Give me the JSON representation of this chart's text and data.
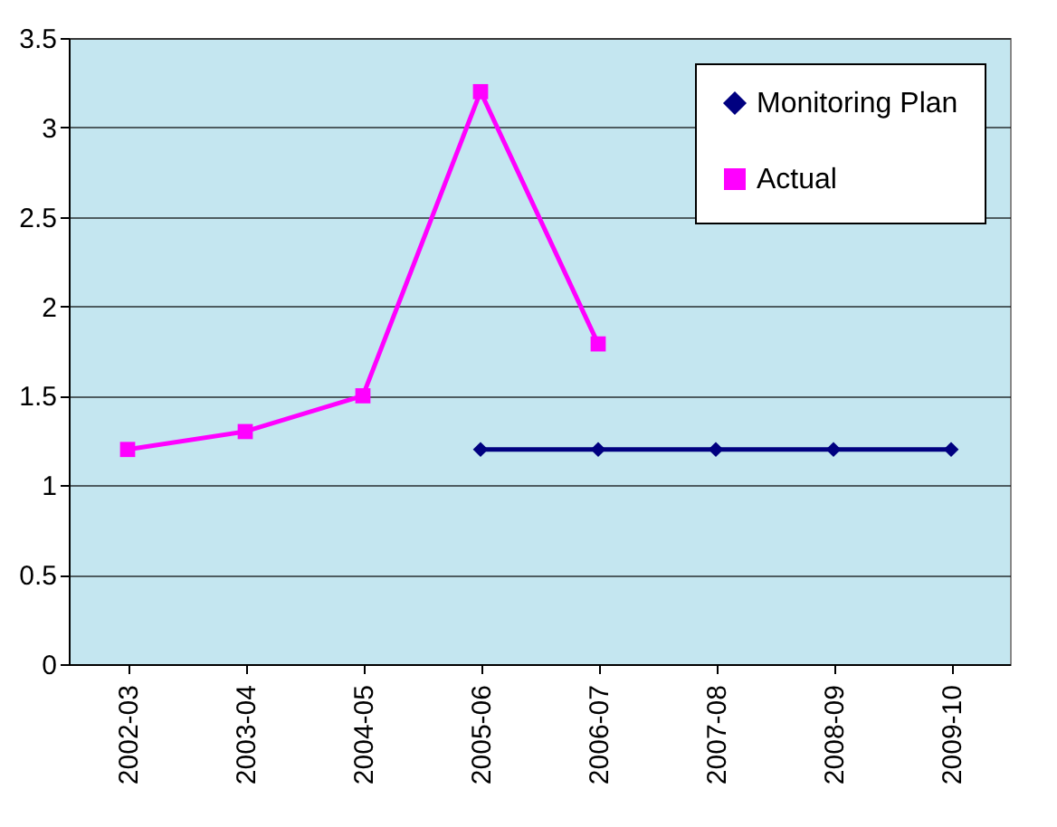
{
  "chart_data": {
    "type": "line",
    "categories": [
      "2002-03",
      "2003-04",
      "2004-05",
      "2005-06",
      "2006-07",
      "2007-08",
      "2008-09",
      "2009-10"
    ],
    "series": [
      {
        "name": "Monitoring Plan",
        "color": "#000080",
        "marker": "diamond",
        "values": [
          null,
          null,
          null,
          1.2,
          1.2,
          1.2,
          1.2,
          1.2
        ]
      },
      {
        "name": "Actual",
        "color": "#ff00ff",
        "marker": "square",
        "values": [
          1.2,
          1.3,
          1.5,
          3.2,
          1.79,
          null,
          null,
          null
        ]
      }
    ],
    "ylim": [
      0,
      3.5
    ],
    "yticks": [
      0,
      0.5,
      1,
      1.5,
      2,
      2.5,
      3,
      3.5
    ],
    "grid": "y",
    "legend": "top right"
  }
}
